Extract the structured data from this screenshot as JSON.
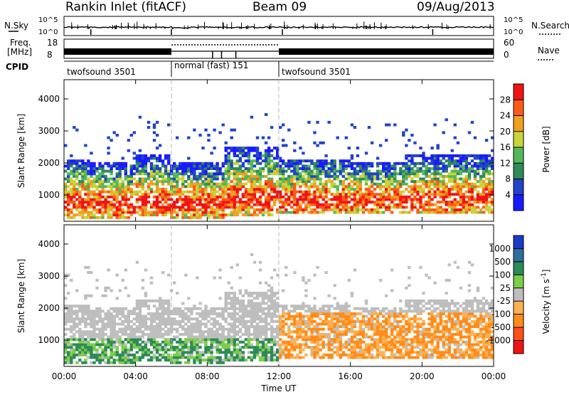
{
  "header": {
    "station": "Rankin Inlet (fitACF)",
    "beam": "Beam 09",
    "date": "09/Aug/2013"
  },
  "sky_panel": {
    "left_label": "N.Sky",
    "left_ticks": [
      "10^5",
      "10^0"
    ],
    "right_ticks": [
      "10^5",
      "10^0"
    ],
    "right_label": "N.Search"
  },
  "freq_panel": {
    "label_line1": "Freq.",
    "label_line2": "[MHz]",
    "left_ticks": [
      "18",
      "8"
    ],
    "right_ticks": [
      "60",
      "0"
    ],
    "right_label": "Nave"
  },
  "cpid_panel": {
    "label": "CPID",
    "segments": [
      {
        "name": "twofsound 3501",
        "start_h": 0,
        "end_h": 6
      },
      {
        "name": "normal (fast) 151",
        "start_h": 6,
        "end_h": 12
      },
      {
        "name": "twofsound 3501",
        "start_h": 12,
        "end_h": 24
      }
    ]
  },
  "chart_data": {
    "type": "heatmap",
    "x_axis": {
      "label": "Time UT",
      "range_h": [
        0,
        24
      ],
      "tick_labels": [
        "00:00",
        "04:00",
        "08:00",
        "12:00",
        "16:00",
        "20:00",
        "00:00"
      ],
      "tick_hours": [
        0,
        4,
        8,
        12,
        16,
        20,
        24
      ],
      "dashed_markers_h": [
        6,
        12
      ]
    },
    "panels": [
      {
        "name": "power",
        "ylabel": "Slant Range [km]",
        "yrange_km": [
          180,
          4600
        ],
        "yticks": [
          1000,
          2000,
          3000,
          4000
        ],
        "colorbar": {
          "label": "Power [dB]",
          "ticks": [
            "4",
            "8",
            "12",
            "16",
            "20",
            "24",
            "28"
          ],
          "colors": [
            "#1a1aff",
            "#2244c8",
            "#2e8b57",
            "#55b85a",
            "#c8d43a",
            "#f0a020",
            "#ff5a14",
            "#f01414"
          ]
        }
      },
      {
        "name": "velocity",
        "ylabel": "Slant Range [km]",
        "yrange_km": [
          180,
          4600
        ],
        "yticks": [
          1000,
          2000,
          3000,
          4000
        ],
        "colorbar": {
          "label": "Velocity [m s^-1]",
          "ticks": [
            "1000",
            "500",
            "100",
            "25",
            "-25",
            "-100",
            "-500",
            "-1000"
          ],
          "colors": [
            "#1b3ac8",
            "#2d6e9e",
            "#2e8b57",
            "#7ccd4a",
            "#bebebe",
            "#ffb050",
            "#ff8c1a",
            "#ff5014",
            "#f01414"
          ]
        }
      }
    ],
    "echo_bands_km": [
      {
        "from_h": 0.0,
        "to_h": 1.5,
        "low": 250,
        "high": 2100
      },
      {
        "from_h": 1.5,
        "to_h": 4.0,
        "low": 250,
        "high": 2000
      },
      {
        "from_h": 4.0,
        "to_h": 6.0,
        "low": 300,
        "high": 2200
      },
      {
        "from_h": 6.0,
        "to_h": 9.0,
        "low": 250,
        "high": 2000
      },
      {
        "from_h": 9.0,
        "to_h": 12.0,
        "low": 300,
        "high": 2500
      },
      {
        "from_h": 12.0,
        "to_h": 16.0,
        "low": 350,
        "high": 2100
      },
      {
        "from_h": 16.0,
        "to_h": 19.0,
        "low": 400,
        "high": 2000
      },
      {
        "from_h": 19.0,
        "to_h": 24.0,
        "low": 400,
        "high": 2200
      }
    ]
  },
  "colors": {
    "frame": "#000000",
    "dashed_marker": "#b4b4b4",
    "echo_gray": "#c8c8c8"
  }
}
